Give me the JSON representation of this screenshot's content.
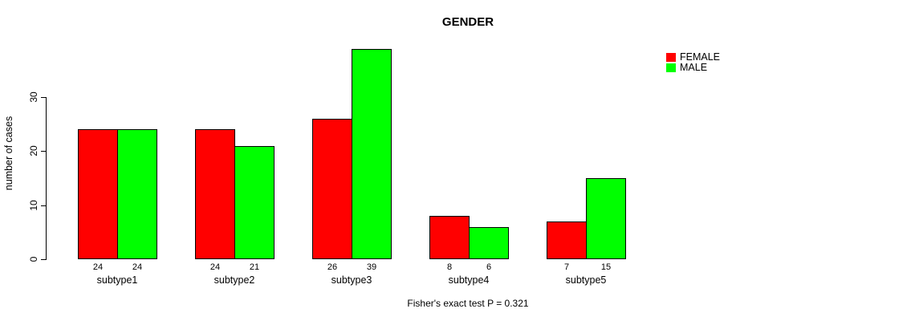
{
  "chart_data": {
    "type": "bar",
    "title": "GENDER",
    "categories": [
      "subtype1",
      "subtype2",
      "subtype3",
      "subtype4",
      "subtype5"
    ],
    "series": [
      {
        "name": "FEMALE",
        "color": "#FF0000",
        "values": [
          24,
          24,
          26,
          8,
          7
        ]
      },
      {
        "name": "MALE",
        "color": "#00FF00",
        "values": [
          24,
          21,
          39,
          6,
          15
        ]
      }
    ],
    "xlabel": "",
    "ylabel": "number of cases",
    "ylim": [
      0,
      40
    ],
    "yticks": [
      0,
      10,
      20,
      30
    ],
    "grid": false,
    "legend_position": "top-right",
    "bar_value_labels": true,
    "annotation": "Fisher's exact test P = 0.321"
  },
  "colors": {
    "axis": "#000000",
    "background": "#FFFFFF",
    "female": "#FF0000",
    "male": "#00FF00"
  }
}
